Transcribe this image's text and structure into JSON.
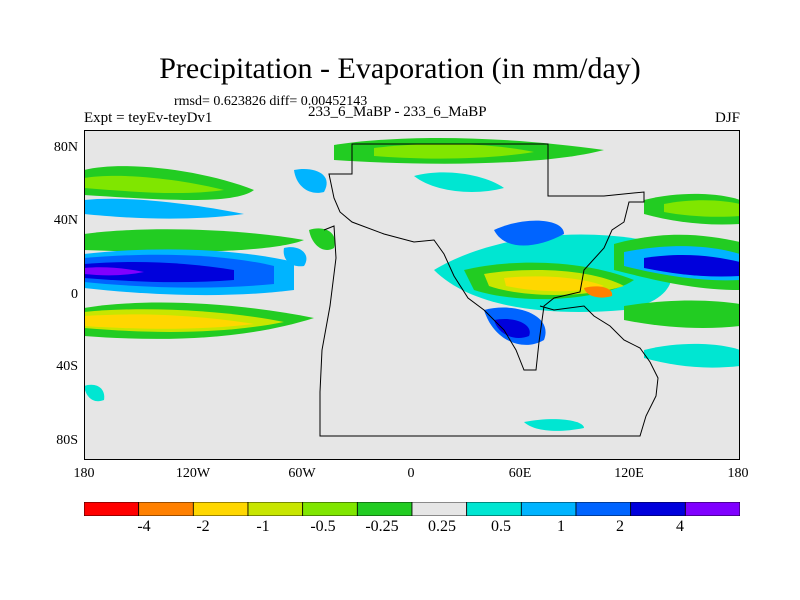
{
  "title": "Precipitation - Evaporation (in mm/day)",
  "stats": "rmsd= 0.623826 diff= 0.00452143",
  "experiment": "Expt = teyEv-teyDv1",
  "case": "233_6_MaBP - 233_6_MaBP",
  "season": "DJF",
  "axes": {
    "y_ticks": [
      "80N",
      "40N",
      "0",
      "40S",
      "80S"
    ],
    "x_ticks": [
      "180",
      "120W",
      "60W",
      "0",
      "60E",
      "120E",
      "180"
    ]
  },
  "colorbar": {
    "labels": [
      "-4",
      "-2",
      "-1",
      "-0.5",
      "-0.25",
      "0.25",
      "0.5",
      "1",
      "2",
      "4"
    ],
    "colors": [
      "#ff0000",
      "#ff8000",
      "#ffd700",
      "#c8e600",
      "#80e600",
      "#22cc22",
      "#e6e6e6",
      "#00e6d2",
      "#00b4ff",
      "#0064ff",
      "#0000dc",
      "#8000ff"
    ]
  },
  "palette": {
    "background": "#e6e6e6",
    "land_outline": "#000000"
  }
}
